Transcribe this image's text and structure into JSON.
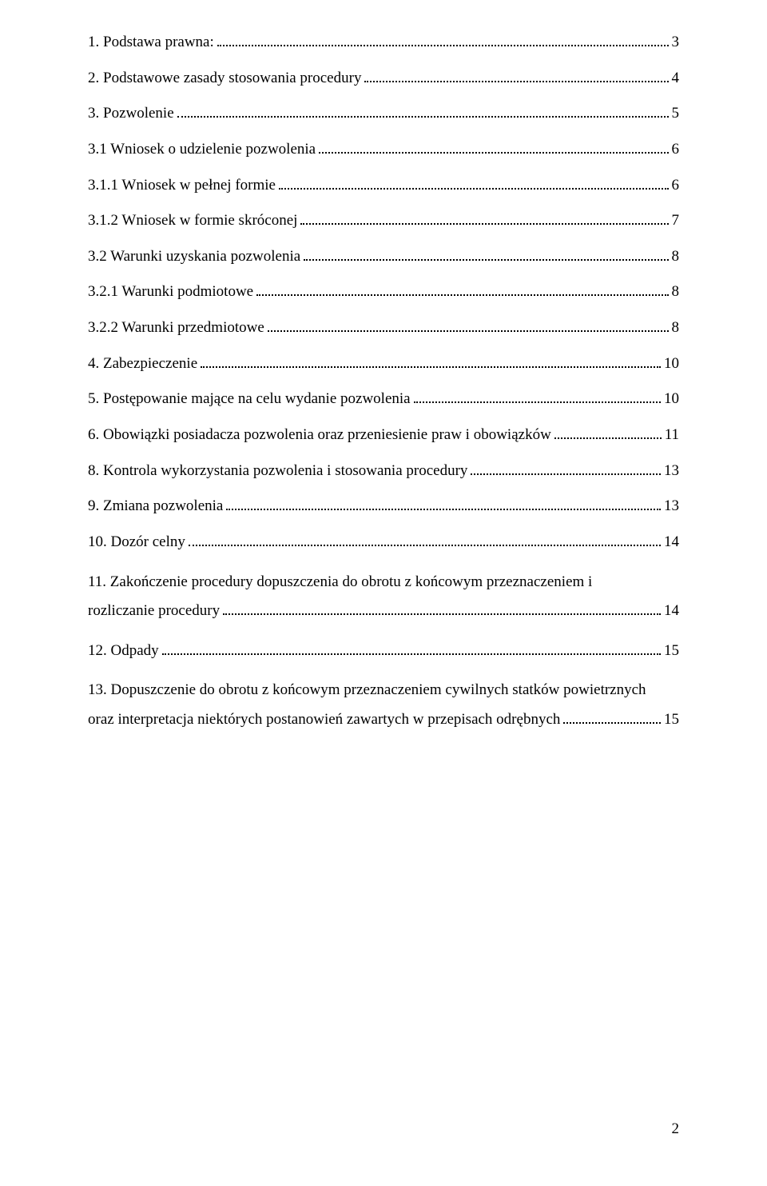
{
  "toc": [
    {
      "text": "1. Podstawa prawna:",
      "page": "3",
      "multiline": false
    },
    {
      "text": "2. Podstawowe zasady stosowania procedury",
      "page": "4",
      "multiline": false
    },
    {
      "text": "3. Pozwolenie",
      "page": "5",
      "multiline": false
    },
    {
      "text": "3.1 Wniosek o udzielenie pozwolenia",
      "page": "6",
      "multiline": false
    },
    {
      "text": "3.1.1 Wniosek w pełnej formie",
      "page": "6",
      "multiline": false
    },
    {
      "text": "3.1.2 Wniosek w formie skróconej",
      "page": "7",
      "multiline": false
    },
    {
      "text": "3.2 Warunki uzyskania pozwolenia",
      "page": "8",
      "multiline": false
    },
    {
      "text": "3.2.1 Warunki podmiotowe",
      "page": "8",
      "multiline": false
    },
    {
      "text": "3.2.2 Warunki przedmiotowe",
      "page": "8",
      "multiline": false
    },
    {
      "text": "4. Zabezpieczenie",
      "page": "10",
      "multiline": false
    },
    {
      "text": "5. Postępowanie mające na celu wydanie pozwolenia",
      "page": "10",
      "multiline": false
    },
    {
      "text": "6. Obowiązki posiadacza pozwolenia oraz przeniesienie praw i obowiązków",
      "page": "11",
      "multiline": false
    },
    {
      "text": "8. Kontrola wykorzystania pozwolenia i stosowania procedury",
      "page": "13",
      "multiline": false
    },
    {
      "text": "9. Zmiana pozwolenia",
      "page": "13",
      "multiline": false
    },
    {
      "text": "10. Dozór celny",
      "page": "14",
      "multiline": false
    },
    {
      "line1": "11. Zakończenie procedury dopuszczenia do obrotu z końcowym przeznaczeniem i",
      "line2": "rozliczanie procedury",
      "page": "14",
      "multiline": true
    },
    {
      "text": "12. Odpady",
      "page": "15",
      "multiline": false
    },
    {
      "line1": "13. Dopuszczenie do obrotu z końcowym przeznaczeniem cywilnych statków powietrznych",
      "line2": "oraz  interpretacja niektórych postanowień zawartych w przepisach odrębnych",
      "page": "15",
      "multiline": true
    }
  ],
  "pageNumber": "2"
}
